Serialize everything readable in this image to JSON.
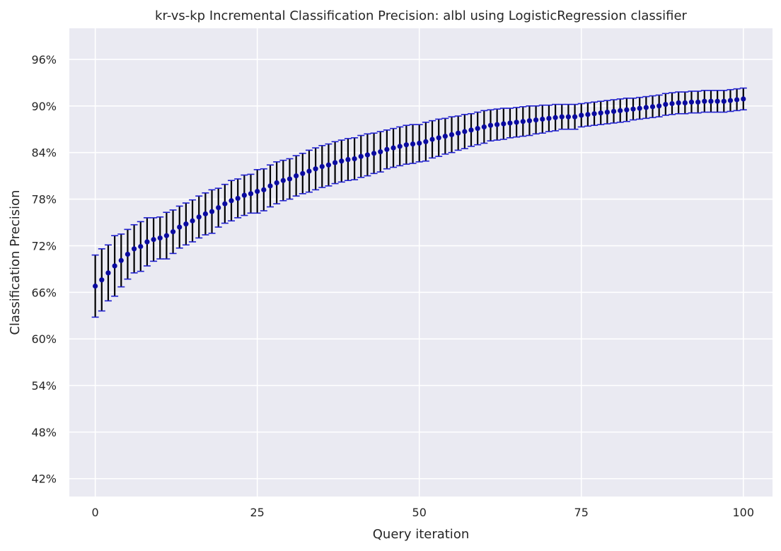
{
  "chart_data": {
    "type": "scatter",
    "title": "kr-vs-kp Incremental Classification Precision: albl using LogisticRegression classifier",
    "xlabel": "Query iteration",
    "ylabel": "Classification Precision",
    "xlim": [
      -4,
      104.5
    ],
    "ylim": [
      0.397,
      1.0
    ],
    "x_ticks": [
      0,
      25,
      50,
      75,
      100
    ],
    "x_tick_labels": [
      "0",
      "25",
      "50",
      "75",
      "100"
    ],
    "y_ticks": [
      0.42,
      0.48,
      0.54,
      0.6,
      0.66,
      0.72,
      0.78,
      0.84,
      0.9,
      0.96
    ],
    "y_tick_labels": [
      "42%",
      "48%",
      "54%",
      "60%",
      "66%",
      "72%",
      "78%",
      "84%",
      "90%",
      "96%"
    ],
    "grid": true,
    "style": {
      "background": "#eaeaf2",
      "grid": "#ffffff",
      "marker": "#0a0aa0",
      "error_bar": "#000000",
      "cap": "#1f1fd0"
    },
    "series": [
      {
        "x": [
          0,
          1,
          2,
          3,
          4,
          5,
          6,
          7,
          8,
          9,
          10,
          11,
          12,
          13,
          14,
          15,
          16,
          17,
          18,
          19,
          20,
          21,
          22,
          23,
          24,
          25,
          26,
          27,
          28,
          29,
          30,
          31,
          32,
          33,
          34,
          35,
          36,
          37,
          38,
          39,
          40,
          41,
          42,
          43,
          44,
          45,
          46,
          47,
          48,
          49,
          50,
          51,
          52,
          53,
          54,
          55,
          56,
          57,
          58,
          59,
          60,
          61,
          62,
          63,
          64,
          65,
          66,
          67,
          68,
          69,
          70,
          71,
          72,
          73,
          74,
          75,
          76,
          77,
          78,
          79,
          80,
          81,
          82,
          83,
          84,
          85,
          86,
          87,
          88,
          89,
          90,
          91,
          92,
          93,
          94,
          95,
          96,
          97,
          98,
          99,
          100
        ],
        "y": [
          0.668,
          0.676,
          0.685,
          0.694,
          0.701,
          0.709,
          0.716,
          0.719,
          0.725,
          0.728,
          0.73,
          0.733,
          0.738,
          0.744,
          0.748,
          0.752,
          0.757,
          0.761,
          0.764,
          0.769,
          0.774,
          0.778,
          0.781,
          0.785,
          0.787,
          0.79,
          0.792,
          0.797,
          0.801,
          0.804,
          0.806,
          0.81,
          0.813,
          0.816,
          0.819,
          0.822,
          0.824,
          0.827,
          0.829,
          0.831,
          0.832,
          0.835,
          0.837,
          0.839,
          0.841,
          0.844,
          0.846,
          0.848,
          0.85,
          0.851,
          0.852,
          0.854,
          0.857,
          0.859,
          0.861,
          0.863,
          0.865,
          0.867,
          0.869,
          0.871,
          0.873,
          0.875,
          0.876,
          0.877,
          0.878,
          0.879,
          0.88,
          0.881,
          0.882,
          0.883,
          0.884,
          0.885,
          0.886,
          0.886,
          0.886,
          0.888,
          0.889,
          0.89,
          0.891,
          0.892,
          0.893,
          0.894,
          0.895,
          0.896,
          0.897,
          0.898,
          0.899,
          0.9,
          0.902,
          0.903,
          0.904,
          0.904,
          0.905,
          0.905,
          0.906,
          0.906,
          0.906,
          0.906,
          0.907,
          0.908,
          0.909
        ],
        "err": [
          0.04,
          0.04,
          0.036,
          0.039,
          0.034,
          0.032,
          0.031,
          0.032,
          0.031,
          0.028,
          0.027,
          0.03,
          0.028,
          0.027,
          0.027,
          0.027,
          0.027,
          0.027,
          0.028,
          0.025,
          0.025,
          0.026,
          0.025,
          0.026,
          0.025,
          0.028,
          0.027,
          0.027,
          0.027,
          0.026,
          0.026,
          0.026,
          0.026,
          0.027,
          0.027,
          0.027,
          0.027,
          0.027,
          0.027,
          0.027,
          0.027,
          0.027,
          0.027,
          0.026,
          0.026,
          0.025,
          0.025,
          0.025,
          0.025,
          0.025,
          0.024,
          0.025,
          0.024,
          0.024,
          0.023,
          0.023,
          0.022,
          0.022,
          0.021,
          0.021,
          0.021,
          0.02,
          0.02,
          0.02,
          0.019,
          0.019,
          0.019,
          0.019,
          0.018,
          0.018,
          0.017,
          0.017,
          0.016,
          0.016,
          0.016,
          0.015,
          0.015,
          0.015,
          0.015,
          0.015,
          0.015,
          0.015,
          0.015,
          0.014,
          0.014,
          0.014,
          0.014,
          0.014,
          0.014,
          0.014,
          0.014,
          0.014,
          0.014,
          0.014,
          0.014,
          0.014,
          0.014,
          0.014,
          0.014,
          0.014,
          0.014
        ]
      }
    ]
  }
}
